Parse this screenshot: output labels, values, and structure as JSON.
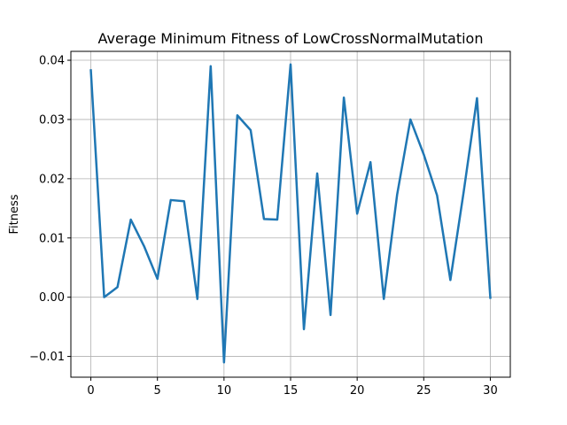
{
  "chart_data": {
    "type": "line",
    "title": "Average Minimum Fitness of LowCrossNormalMutation",
    "xlabel": "",
    "ylabel": "Fitness",
    "xlim": [
      -1.5,
      31.5
    ],
    "ylim": [
      -0.0135,
      0.0415
    ],
    "grid": true,
    "x_ticks": [
      0,
      5,
      10,
      15,
      20,
      25,
      30
    ],
    "y_ticks": [
      -0.01,
      0.0,
      0.01,
      0.02,
      0.03,
      0.04
    ],
    "x_tick_labels": [
      "0",
      "5",
      "10",
      "15",
      "20",
      "25",
      "30"
    ],
    "y_tick_labels": [
      "−0.01",
      "0.00",
      "0.01",
      "0.02",
      "0.03",
      "0.04"
    ],
    "line_color": "#1f77b4",
    "x": [
      0,
      1,
      2,
      3,
      4,
      5,
      6,
      7,
      8,
      9,
      10,
      11,
      12,
      13,
      14,
      15,
      16,
      17,
      18,
      19,
      20,
      21,
      22,
      23,
      24,
      25,
      26,
      27,
      28,
      29,
      30
    ],
    "y": [
      0.0383,
      0.0,
      0.0017,
      0.0131,
      0.0086,
      0.0031,
      0.0164,
      0.0162,
      -0.0003,
      0.039,
      -0.011,
      0.0307,
      0.0282,
      0.0132,
      0.0131,
      0.0393,
      -0.0054,
      0.0209,
      -0.003,
      0.0337,
      0.0141,
      0.0228,
      -0.0003,
      0.0173,
      0.03,
      0.0241,
      0.0172,
      0.0029,
      0.0178,
      0.0336,
      -0.0001
    ]
  }
}
